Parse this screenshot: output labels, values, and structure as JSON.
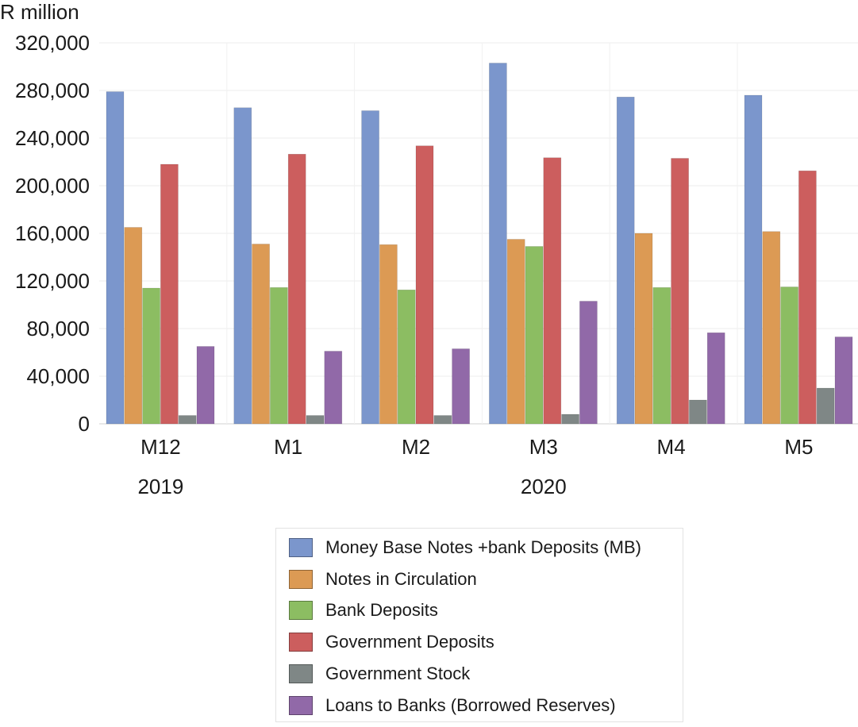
{
  "chart_data": {
    "type": "bar",
    "unit_label": "R million",
    "categories": [
      "M12",
      "M1",
      "M2",
      "M3",
      "M4",
      "M5"
    ],
    "year_labels": [
      {
        "text": "2019",
        "category_index": 0
      },
      {
        "text": "2020",
        "category_index": 3
      }
    ],
    "ylim": [
      0,
      320000
    ],
    "y_ticks": [
      {
        "value": 0,
        "label": "0"
      },
      {
        "value": 40000,
        "label": "40,000"
      },
      {
        "value": 80000,
        "label": "80,000"
      },
      {
        "value": 120000,
        "label": "120,000"
      },
      {
        "value": 160000,
        "label": "160,000"
      },
      {
        "value": 200000,
        "label": "200,000"
      },
      {
        "value": 240000,
        "label": "240,000"
      },
      {
        "value": 280000,
        "label": "280,000"
      },
      {
        "value": 320000,
        "label": "320,000"
      }
    ],
    "grid": true,
    "legend_position": "bottom",
    "series": [
      {
        "name": "Money Base Notes +bank Deposits (MB)",
        "color": "#7b96cc",
        "values": [
          279000,
          265500,
          263000,
          303000,
          274500,
          276000
        ]
      },
      {
        "name": "Notes in Circulation",
        "color": "#dc9a54",
        "values": [
          165000,
          151000,
          150500,
          155000,
          160000,
          161500
        ]
      },
      {
        "name": "Bank Deposits",
        "color": "#8cbd62",
        "values": [
          114000,
          114500,
          112500,
          149000,
          114500,
          115000
        ]
      },
      {
        "name": "Government Deposits",
        "color": "#cc5e5e",
        "values": [
          218000,
          226500,
          233500,
          223500,
          223000,
          212500
        ]
      },
      {
        "name": "Government Stock",
        "color": "#7f8786",
        "values": [
          7000,
          7000,
          7000,
          8000,
          20000,
          30000
        ]
      },
      {
        "name": "Loans to Banks (Borrowed Reserves)",
        "color": "#9169a8",
        "values": [
          65000,
          61000,
          63000,
          103000,
          76500,
          73000
        ]
      }
    ]
  }
}
